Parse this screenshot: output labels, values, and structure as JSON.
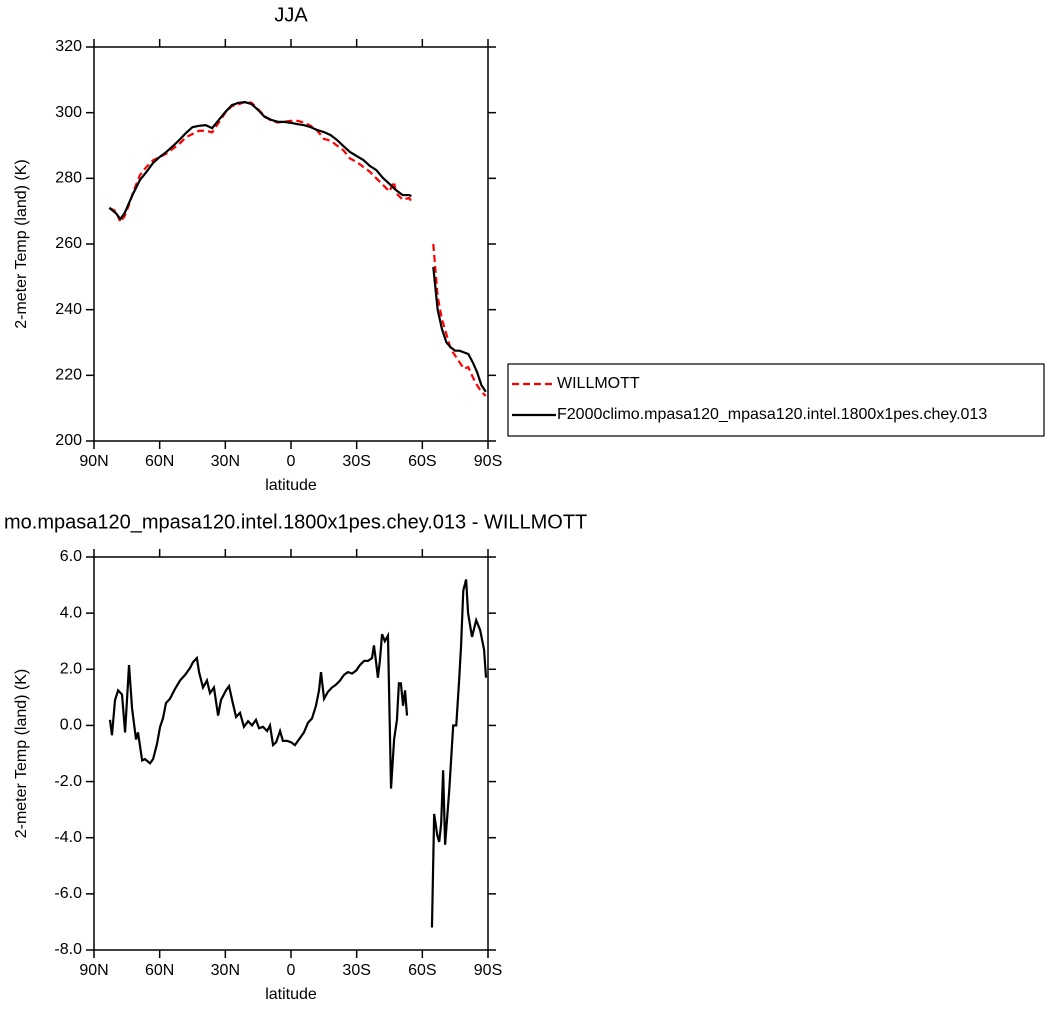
{
  "chart_data": [
    {
      "type": "line",
      "title": "JJA",
      "x_label": "latitude",
      "y_label": "2-meter Temp (land) (K)",
      "x": [
        83,
        80,
        78,
        76,
        74,
        72,
        69,
        66,
        63,
        60,
        57,
        54,
        51,
        48,
        45,
        42,
        39,
        36,
        33,
        30,
        27,
        24,
        21,
        18,
        15,
        12,
        9,
        6,
        3,
        0,
        -3,
        -6,
        -9,
        -12,
        -15,
        -18,
        -21,
        -24,
        -27,
        -30,
        -33,
        -36,
        -39,
        -42,
        -45,
        -47,
        -48,
        -51,
        -54,
        -55,
        -60,
        -65,
        -67,
        -69,
        -71,
        -73,
        -75,
        -77,
        -79,
        -81,
        -83,
        -85,
        -87,
        -89
      ],
      "series": [
        {
          "name": "WILLMOTT",
          "color": "#ff0000",
          "dashed": true,
          "values": [
            271,
            270,
            266.7,
            268.5,
            272,
            276,
            281,
            283.5,
            285.5,
            286.5,
            287.5,
            289,
            290.5,
            292.5,
            293.5,
            294.5,
            294.5,
            294,
            297,
            300,
            302,
            302.5,
            303.3,
            303,
            301,
            299,
            297.5,
            297,
            297.3,
            297.5,
            297.5,
            297,
            296,
            294.5,
            292,
            291.5,
            290,
            288.5,
            286,
            285,
            283.5,
            282,
            280,
            278,
            276,
            279,
            275.5,
            273.5,
            274,
            273,
            null,
            260,
            244,
            237,
            232.5,
            228,
            226,
            224,
            222,
            222.5,
            219.5,
            217,
            215,
            213.7
          ]
        },
        {
          "name": "F2000climo.mpasa120_mpasa120.intel.1800x1pes.chey.013",
          "color": "#000000",
          "dashed": false,
          "values": [
            271,
            269.4,
            267.6,
            269.4,
            272.5,
            275.5,
            279.5,
            282,
            284.7,
            286.5,
            288,
            289.8,
            291.7,
            293.8,
            295.6,
            296,
            296.2,
            295.3,
            297.8,
            300.2,
            302.3,
            303,
            303.2,
            302.6,
            300.8,
            298.7,
            297.8,
            297.2,
            297.2,
            296.9,
            296.5,
            296.2,
            295.6,
            294.7,
            294.1,
            293.2,
            291.7,
            289.8,
            288,
            286.8,
            285.6,
            283.8,
            282.5,
            280.1,
            278.3,
            277,
            276.4,
            274.9,
            274.9,
            274.6,
            null,
            253,
            240,
            234,
            230,
            228.5,
            227.5,
            227.5,
            227,
            226.5,
            224,
            221,
            217,
            215
          ]
        }
      ],
      "xlim": [
        90,
        -90
      ],
      "xticks": [
        {
          "value": 90,
          "label": "90N"
        },
        {
          "value": 60,
          "label": "60N"
        },
        {
          "value": 30,
          "label": "30N"
        },
        0,
        {
          "value": -30,
          "label": "30S"
        },
        {
          "value": -60,
          "label": "60S"
        },
        {
          "value": -90,
          "label": "90S"
        }
      ],
      "ylim": [
        200,
        320
      ],
      "yticks": [
        200,
        220,
        240,
        260,
        280,
        300,
        320
      ],
      "legend": "right"
    },
    {
      "type": "line",
      "title": "mo.mpasa120_mpasa120.intel.1800x1pes.chey.013 - WILLMOTT",
      "x_label": "latitude",
      "y_label": "2-meter Temp (land) (K)",
      "x": [
        82.7,
        81.8,
        80.4,
        79,
        77.2,
        75.8,
        74,
        72.6,
        70.8,
        69.9,
        68,
        66.7,
        64.4,
        63,
        61.2,
        59.8,
        58.5,
        57.1,
        55.3,
        53,
        50.7,
        48.4,
        46.1,
        44.8,
        43,
        42,
        40.2,
        38.4,
        37,
        35.2,
        33.3,
        32,
        29.7,
        28.3,
        26.9,
        25.1,
        23.3,
        21.5,
        19.6,
        17.8,
        16,
        14.6,
        12.8,
        10.9,
        9.6,
        8.2,
        6.8,
        5,
        3.7,
        1.8,
        0,
        -1.8,
        -4.1,
        -5.9,
        -7.8,
        -9.6,
        -11.4,
        -12.8,
        -13.7,
        -15.1,
        -16.9,
        -18.7,
        -20.5,
        -22.4,
        -24.2,
        -26,
        -27.9,
        -29.7,
        -31.5,
        -33.4,
        -35.2,
        -37,
        -37.9,
        -38.8,
        -39.7,
        -40.6,
        -41.6,
        -42.9,
        -44.3,
        -45.7,
        -47.1,
        -48.4,
        -49.3,
        -50.2,
        -51.2,
        -52.1,
        -53,
        -58,
        -64.4,
        -65.4,
        -66.8,
        -67.7,
        -68.6,
        -69.5,
        -70.4,
        -72.3,
        -74.1,
        -75.5,
        -76.8,
        -77.7,
        -78.7,
        -80,
        -80.9,
        -82.7,
        -84.6,
        -86.4,
        -88.2,
        -89.1
      ],
      "series": [
        {
          "color": "#000000",
          "dashed": false,
          "values": [
            0.2,
            -0.35,
            0.9,
            1.25,
            1.1,
            -0.25,
            2.15,
            0.6,
            -0.5,
            -0.25,
            -1.25,
            -1.2,
            -1.35,
            -1.2,
            -0.65,
            -0.05,
            0.25,
            0.8,
            0.95,
            1.3,
            1.6,
            1.8,
            2.05,
            2.25,
            2.4,
            1.9,
            1.35,
            1.6,
            1.15,
            1.35,
            0.35,
            0.9,
            1.25,
            1.4,
            0.9,
            0.3,
            0.45,
            -0.05,
            0.15,
            0,
            0.2,
            -0.1,
            -0.05,
            -0.2,
            0,
            -0.7,
            -0.6,
            -0.2,
            -0.55,
            -0.55,
            -0.6,
            -0.7,
            -0.45,
            -0.25,
            0.1,
            0.25,
            0.7,
            1.25,
            1.9,
            0.95,
            1.2,
            1.35,
            1.45,
            1.6,
            1.8,
            1.9,
            1.85,
            1.95,
            2.15,
            2.3,
            2.3,
            2.4,
            2.85,
            2.3,
            1.7,
            2.3,
            3.25,
            3,
            3.2,
            -2.25,
            -0.5,
            0.2,
            1.5,
            1.5,
            0.7,
            1.25,
            0.35,
            null,
            -7.2,
            -3.15,
            -3.9,
            -4.15,
            -3.5,
            -1.6,
            -4.25,
            -2.3,
            0,
            0,
            1.6,
            2.85,
            4.8,
            5.2,
            4,
            3.15,
            3.75,
            3.4,
            2.7,
            1.7
          ]
        }
      ],
      "xlim": [
        90,
        -90
      ],
      "xticks": [
        {
          "value": 90,
          "label": "90N"
        },
        {
          "value": 60,
          "label": "60N"
        },
        {
          "value": 30,
          "label": "30N"
        },
        0,
        {
          "value": -30,
          "label": "30S"
        },
        {
          "value": -60,
          "label": "60S"
        },
        {
          "value": -90,
          "label": "90S"
        }
      ],
      "ylim": [
        -8,
        6
      ],
      "yticks": [
        {
          "value": -8,
          "label": "-8.0"
        },
        {
          "value": -6,
          "label": "-6.0"
        },
        {
          "value": -4,
          "label": "-4.0"
        },
        {
          "value": -2,
          "label": "-2.0"
        },
        {
          "value": 0,
          "label": "0.0"
        },
        {
          "value": 2,
          "label": "2.0"
        },
        {
          "value": 4,
          "label": "4.0"
        },
        {
          "value": 6,
          "label": "6.0"
        }
      ]
    }
  ]
}
